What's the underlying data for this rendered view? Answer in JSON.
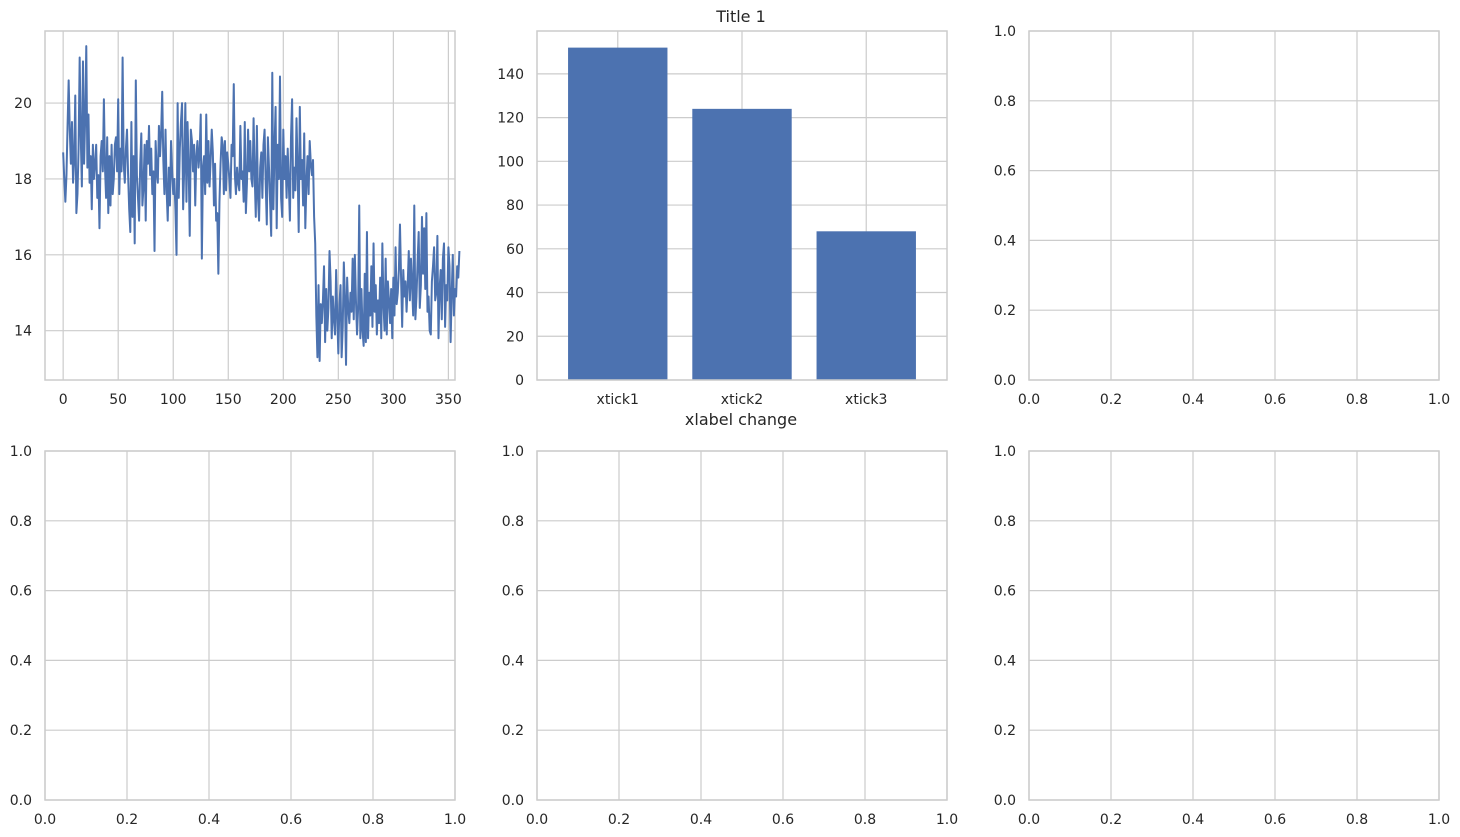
{
  "colors": {
    "series": "#4c72b0",
    "grid": "#cccccc",
    "frame": "#cccccc",
    "text": "#262626",
    "background": "#ffffff"
  },
  "chart_data": [
    {
      "type": "line",
      "title": "",
      "xlabel": "",
      "ylabel": "",
      "grid": true,
      "xlim": [
        -16.5,
        356
      ],
      "ylim": [
        12.7,
        21.9
      ],
      "xticks": [
        0,
        50,
        100,
        150,
        200,
        250,
        300,
        350
      ],
      "yticks": [
        14,
        16,
        18,
        20
      ],
      "xtick_labels": [
        "0",
        "50",
        "100",
        "150",
        "200",
        "250",
        "300",
        "350"
      ],
      "ytick_labels": [
        "14",
        "16",
        "18",
        "20"
      ],
      "series": [
        {
          "x_start": 0,
          "x_step": 1,
          "values": [
            18.7,
            18.0,
            17.4,
            18.1,
            19.4,
            20.6,
            19.3,
            18.4,
            19.5,
            17.9,
            18.5,
            20.2,
            17.1,
            17.6,
            18.8,
            21.2,
            19.1,
            17.8,
            21.1,
            18.4,
            19.6,
            21.5,
            18.3,
            19.7,
            17.9,
            18.6,
            17.2,
            18.9,
            18.0,
            18.4,
            18.9,
            17.5,
            18.1,
            16.7,
            18.6,
            19.0,
            18.2,
            20.1,
            18.3,
            17.5,
            19.1,
            17.1,
            18.6,
            17.3,
            18.9,
            17.6,
            18.0,
            18.9,
            19.1,
            18.2,
            20.1,
            17.6,
            18.8,
            18.2,
            21.2,
            18.4,
            17.9,
            18.8,
            19.3,
            18.1,
            17.2,
            16.6,
            19.5,
            17.0,
            18.6,
            16.3,
            20.6,
            18.1,
            17.5,
            16.9,
            18.4,
            19.2,
            17.3,
            17.8,
            18.9,
            16.9,
            19.0,
            18.4,
            19.4,
            18.1,
            18.8,
            17.6,
            18.2,
            16.1,
            19.0,
            18.2,
            17.9,
            19.4,
            18.6,
            19.2,
            20.3,
            18.5,
            17.6,
            19.3,
            17.7,
            16.9,
            18.3,
            17.3,
            19.0,
            18.2,
            17.6,
            18.0,
            17.2,
            16.0,
            20.0,
            17.5,
            18.8,
            19.5,
            20.0,
            17.2,
            18.3,
            20.0,
            17.4,
            19.5,
            18.4,
            16.5,
            19.3,
            19.0,
            18.2,
            18.9,
            17.3,
            18.6,
            19.0,
            18.3,
            18.7,
            19.7,
            15.9,
            18.3,
            18.6,
            17.6,
            19.7,
            17.9,
            19.0,
            17.8,
            18.5,
            19.3,
            18.7,
            17.3,
            18.4,
            16.9,
            17.1,
            15.5,
            17.4,
            18.4,
            19.1,
            18.9,
            17.6,
            19.0,
            17.7,
            18.7,
            18.4,
            18.0,
            17.5,
            18.9,
            18.6,
            20.5,
            18.1,
            17.6,
            18.3,
            17.9,
            17.7,
            19.4,
            18.0,
            18.2,
            17.4,
            19.5,
            17.1,
            17.9,
            19.3,
            18.2,
            19.0,
            18.0,
            17.8,
            19.6,
            18.1,
            17.0,
            19.4,
            17.5,
            16.9,
            18.3,
            18.7,
            17.5,
            18.9,
            19.3,
            17.9,
            16.8,
            19.1,
            18.3,
            17.4,
            16.5,
            20.8,
            17.2,
            18.8,
            19.9,
            16.7,
            18.9,
            18.0,
            20.7,
            17.5,
            17.0,
            19.3,
            18.0,
            18.6,
            17.5,
            18.8,
            17.9,
            16.9,
            19.1,
            20.1,
            17.5,
            18.3,
            17.7,
            19.6,
            18.3,
            16.6,
            19.9,
            18.0,
            18.5,
            17.3,
            19.2,
            16.7,
            17.9,
            18.6,
            17.6,
            19.0,
            18.4,
            18.1,
            18.5,
            17.0,
            16.3,
            14.4,
            13.3,
            15.2,
            13.2,
            14.7,
            14.2,
            14.8,
            15.7,
            13.7,
            15.1,
            14.0,
            14.6,
            16.1,
            15.3,
            13.8,
            14.9,
            14.3,
            13.9,
            15.6,
            14.4,
            13.4,
            14.7,
            15.2,
            13.3,
            14.1,
            15.8,
            14.9,
            13.1,
            15.4,
            14.6,
            14.2,
            15.0,
            14.5,
            15.9,
            14.3,
            16.0,
            14.8,
            13.9,
            14.6,
            17.3,
            13.8,
            15.1,
            14.0,
            13.6,
            15.5,
            13.7,
            16.6,
            13.8,
            15.0,
            14.4,
            15.7,
            14.1,
            16.3,
            14.5,
            15.2,
            13.9,
            14.8,
            14.2,
            15.4,
            13.8,
            16.3,
            14.7,
            14.0,
            15.9,
            13.9,
            15.3,
            14.8,
            14.2,
            15.1,
            13.8,
            15.4,
            14.4,
            16.2,
            14.7,
            15.0,
            15.6,
            16.8,
            15.4,
            14.1,
            15.6,
            14.9,
            15.3,
            14.5,
            15.2,
            16.1,
            14.8,
            15.9,
            15.2,
            14.4,
            17.3,
            14.3,
            14.9,
            15.8,
            16.6,
            14.6,
            15.2,
            17.0,
            15.5,
            16.7,
            15.1,
            17.1,
            14.5,
            14.9,
            14.0,
            13.9,
            15.3,
            15.7,
            16.2,
            14.8,
            15.0,
            16.5,
            13.8,
            15.1,
            15.6,
            14.3,
            15.9,
            16.3,
            14.1,
            15.2,
            14.8,
            16.2,
            15.7,
            13.7,
            15.0,
            16.0,
            14.4,
            15.1,
            14.9,
            15.7,
            15.4,
            16.1
          ]
        }
      ]
    },
    {
      "type": "bar",
      "title": "Title 1",
      "xlabel": "xlabel change",
      "ylabel": "",
      "grid": true,
      "categories": [
        "xtick1",
        "xtick2",
        "xtick3"
      ],
      "values": [
        152,
        124,
        68
      ],
      "ylim": [
        0,
        159.6
      ],
      "yticks": [
        0,
        20,
        40,
        60,
        80,
        100,
        120,
        140
      ],
      "ytick_labels": [
        "0",
        "20",
        "40",
        "60",
        "80",
        "100",
        "120",
        "140"
      ]
    },
    {
      "type": "line",
      "title": "",
      "xlabel": "",
      "ylabel": "",
      "grid": true,
      "xlim": [
        0,
        1
      ],
      "ylim": [
        0,
        1
      ],
      "ticks": [
        0,
        0.2,
        0.4,
        0.6,
        0.8,
        1.0
      ],
      "tick_labels": [
        "0.0",
        "0.2",
        "0.4",
        "0.6",
        "0.8",
        "1.0"
      ],
      "series": []
    },
    {
      "type": "line",
      "title": "",
      "xlabel": "",
      "ylabel": "",
      "grid": true,
      "xlim": [
        0,
        1
      ],
      "ylim": [
        0,
        1
      ],
      "ticks": [
        0,
        0.2,
        0.4,
        0.6,
        0.8,
        1.0
      ],
      "tick_labels": [
        "0.0",
        "0.2",
        "0.4",
        "0.6",
        "0.8",
        "1.0"
      ],
      "series": []
    },
    {
      "type": "line",
      "title": "",
      "xlabel": "",
      "ylabel": "",
      "grid": true,
      "xlim": [
        0,
        1
      ],
      "ylim": [
        0,
        1
      ],
      "ticks": [
        0,
        0.2,
        0.4,
        0.6,
        0.8,
        1.0
      ],
      "tick_labels": [
        "0.0",
        "0.2",
        "0.4",
        "0.6",
        "0.8",
        "1.0"
      ],
      "series": []
    },
    {
      "type": "line",
      "title": "",
      "xlabel": "",
      "ylabel": "",
      "grid": true,
      "xlim": [
        0,
        1
      ],
      "ylim": [
        0,
        1
      ],
      "ticks": [
        0,
        0.2,
        0.4,
        0.6,
        0.8,
        1.0
      ],
      "tick_labels": [
        "0.0",
        "0.2",
        "0.4",
        "0.6",
        "0.8",
        "1.0"
      ],
      "series": []
    }
  ]
}
